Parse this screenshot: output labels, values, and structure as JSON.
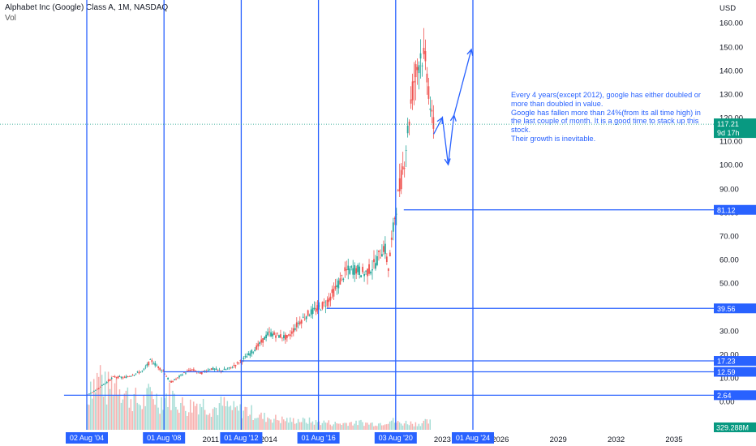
{
  "header": {
    "title": "Alphabet Inc (Google) Class A, 1M, NASDAQ",
    "volume_label": "Vol"
  },
  "note": "Every 4 years(except 2012), google has either doubled or more than doubled in value.\nGoogle has fallen more than 24%(from its all time high) in the last couple of month. It is a good time to stack up this stock.\nTheir growth is inevitable.",
  "colors": {
    "up": "#26a69a",
    "down": "#ef5350",
    "drawing": "#2962ff",
    "price_tag": "#089981",
    "volume_up": "#a7ddd6",
    "volume_down": "#f7b2b0"
  },
  "chart_data": {
    "type": "candlestick",
    "title": "Alphabet Inc (Google) Class A, 1M, NASDAQ",
    "y_axis": {
      "unit": "USD",
      "scale": "log",
      "ticks": [
        160,
        150,
        140,
        130,
        120,
        110,
        100,
        90,
        80,
        70,
        60,
        50,
        40,
        30,
        20,
        10,
        0
      ],
      "tick_labels": [
        "160.00",
        "150.00",
        "140.00",
        "130.00",
        "120.00",
        "110.00",
        "100.00",
        "90.00",
        "80.00",
        "70.00",
        "60.00",
        "50.00",
        "40.00",
        "30.00",
        "20.00",
        "10.00",
        "0.00"
      ]
    },
    "x_axis": {
      "ticks": [
        {
          "label": "2011",
          "year": 2011
        },
        {
          "label": "2014",
          "year": 2014
        },
        {
          "label": "2023",
          "year": 2023
        },
        {
          "label": "2026",
          "year": 2026
        },
        {
          "label": "2029",
          "year": 2029
        },
        {
          "label": "2032",
          "year": 2032
        },
        {
          "label": "2035",
          "year": 2035
        }
      ]
    },
    "date_markers": [
      {
        "label": "02 Aug '04",
        "year": 2004.58
      },
      {
        "label": "01 Aug '08",
        "year": 2008.58
      },
      {
        "label": "01 Aug '12",
        "year": 2012.58
      },
      {
        "label": "01 Aug '16",
        "year": 2016.58
      },
      {
        "label": "03 Aug '20",
        "year": 2020.58
      },
      {
        "label": "01 Aug '24",
        "year": 2024.58
      }
    ],
    "price_levels": [
      {
        "label": "81.12",
        "value": 81.12,
        "from_year": 2021.0
      },
      {
        "label": "39.56",
        "value": 39.56,
        "from_year": 2017.0
      },
      {
        "label": "17.23",
        "value": 17.23,
        "from_year": 2012.58
      },
      {
        "label": "12.59",
        "value": 12.59,
        "from_year": 2008.58
      },
      {
        "label": "2.64",
        "value": 2.64,
        "from_year": 2003.4
      }
    ],
    "last_price": {
      "value": 117.21,
      "label": "117.21",
      "countdown": "9d 17h"
    },
    "volume_last": "329.288M",
    "projection_path": [
      [
        2022.55,
        113
      ],
      [
        2023.0,
        120
      ],
      [
        2023.3,
        100
      ],
      [
        2023.6,
        121
      ],
      [
        2024.5,
        149
      ]
    ],
    "price_path": [
      [
        2004.58,
        2.64
      ],
      [
        2005.0,
        4.5
      ],
      [
        2005.5,
        7.5
      ],
      [
        2006.0,
        10.5
      ],
      [
        2006.5,
        10.0
      ],
      [
        2007.0,
        11.5
      ],
      [
        2007.5,
        13.0
      ],
      [
        2007.9,
        17.5
      ],
      [
        2008.3,
        14.5
      ],
      [
        2008.58,
        12.59
      ],
      [
        2008.9,
        8.0
      ],
      [
        2009.3,
        10.0
      ],
      [
        2009.6,
        12.0
      ],
      [
        2010.0,
        13.5
      ],
      [
        2010.5,
        12.0
      ],
      [
        2011.0,
        14.0
      ],
      [
        2011.5,
        13.0
      ],
      [
        2012.0,
        14.0
      ],
      [
        2012.58,
        17.23
      ],
      [
        2013.0,
        20.0
      ],
      [
        2013.5,
        24.0
      ],
      [
        2014.0,
        29.0
      ],
      [
        2014.5,
        28.0
      ],
      [
        2015.0,
        27.0
      ],
      [
        2015.5,
        33.0
      ],
      [
        2016.0,
        37.0
      ],
      [
        2016.58,
        39.56
      ],
      [
        2017.0,
        42.0
      ],
      [
        2017.5,
        48.0
      ],
      [
        2018.0,
        55.0
      ],
      [
        2018.5,
        56.0
      ],
      [
        2019.0,
        54.0
      ],
      [
        2019.5,
        58.0
      ],
      [
        2020.0,
        66.0
      ],
      [
        2020.2,
        56.0
      ],
      [
        2020.58,
        81.12
      ],
      [
        2021.0,
        100.0
      ],
      [
        2021.5,
        135.0
      ],
      [
        2021.9,
        148.0
      ],
      [
        2022.2,
        140.0
      ],
      [
        2022.45,
        118.0
      ],
      [
        2022.55,
        117.21
      ]
    ],
    "volume_path": [
      [
        2004.6,
        18
      ],
      [
        2004.8,
        42
      ],
      [
        2005.0,
        36
      ],
      [
        2005.3,
        45
      ],
      [
        2005.6,
        30
      ],
      [
        2005.9,
        38
      ],
      [
        2006.2,
        40
      ],
      [
        2006.5,
        30
      ],
      [
        2006.8,
        26
      ],
      [
        2007.1,
        24
      ],
      [
        2007.4,
        20
      ],
      [
        2007.7,
        25
      ],
      [
        2008.0,
        30
      ],
      [
        2008.3,
        22
      ],
      [
        2008.6,
        26
      ],
      [
        2008.9,
        28
      ],
      [
        2009.2,
        24
      ],
      [
        2009.5,
        20
      ],
      [
        2009.8,
        18
      ],
      [
        2010.1,
        20
      ],
      [
        2010.4,
        22
      ],
      [
        2010.7,
        20
      ],
      [
        2011.0,
        18
      ],
      [
        2011.3,
        17
      ],
      [
        2011.6,
        20
      ],
      [
        2011.9,
        18
      ],
      [
        2012.2,
        16
      ],
      [
        2012.5,
        15
      ],
      [
        2012.8,
        16
      ],
      [
        2013.1,
        14
      ],
      [
        2013.4,
        12
      ],
      [
        2013.7,
        10
      ],
      [
        2014.0,
        10
      ],
      [
        2014.3,
        9
      ],
      [
        2014.6,
        8
      ],
      [
        2014.9,
        8
      ],
      [
        2015.2,
        7
      ],
      [
        2015.5,
        8
      ],
      [
        2015.8,
        7
      ],
      [
        2016.1,
        7
      ],
      [
        2016.4,
        6
      ],
      [
        2016.7,
        6
      ],
      [
        2017.0,
        6
      ],
      [
        2017.3,
        5
      ],
      [
        2017.6,
        5
      ],
      [
        2017.9,
        5
      ],
      [
        2018.2,
        6
      ],
      [
        2018.5,
        5
      ],
      [
        2018.8,
        6
      ],
      [
        2019.1,
        5
      ],
      [
        2019.4,
        5
      ],
      [
        2019.7,
        5
      ],
      [
        2020.0,
        6
      ],
      [
        2020.3,
        8
      ],
      [
        2020.6,
        6
      ],
      [
        2020.9,
        5
      ],
      [
        2021.2,
        6
      ],
      [
        2021.5,
        5
      ],
      [
        2021.8,
        5
      ],
      [
        2022.1,
        6
      ],
      [
        2022.4,
        6
      ]
    ]
  }
}
